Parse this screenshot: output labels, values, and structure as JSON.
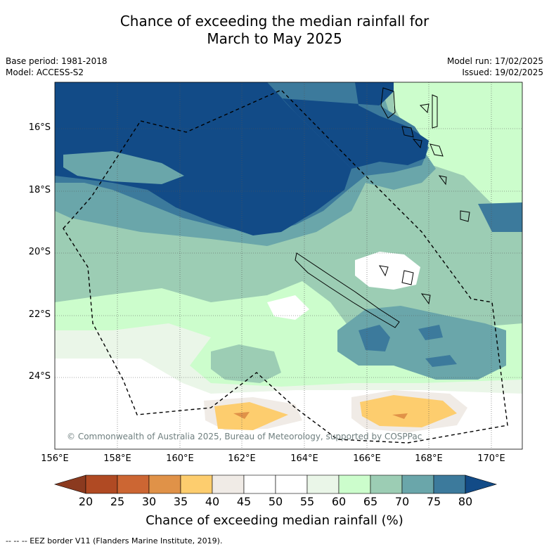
{
  "title": {
    "line1": "Chance of exceeding the median rainfall for",
    "line2": "March to May 2025"
  },
  "meta_left": {
    "base_period": "Base period: 1981-2018",
    "model": "Model: ACCESS-S2"
  },
  "meta_right": {
    "model_run": "Model run: 17/02/2025",
    "issued": "Issued: 19/02/2025"
  },
  "latitude_labels": [
    "16°S",
    "18°S",
    "20°S",
    "22°S",
    "24°S"
  ],
  "longitude_labels": [
    "156°E",
    "158°E",
    "160°E",
    "162°E",
    "164°E",
    "166°E",
    "168°E",
    "170°E"
  ],
  "copyright": "© Commonwealth of Australia 2025, Bureau of Meteorology, supported by COSPPac",
  "colorbar": {
    "ticks": [
      "20",
      "25",
      "30",
      "35",
      "40",
      "45",
      "50",
      "55",
      "60",
      "65",
      "70",
      "75",
      "80"
    ],
    "colors": [
      "#8b3a1f",
      "#b04a23",
      "#cc6633",
      "#e09248",
      "#fdcd6e",
      "#f0ebe6",
      "#ffffff",
      "#ffffff",
      "#eaf6e8",
      "#ccfdcc",
      "#9ccdb4",
      "#6aa6aa",
      "#3c7a9c",
      "#124b87"
    ],
    "label": "Chance of exceeding median rainfall (%)"
  },
  "legend_footer": "-- -- -- EEZ border V11 (Flanders Marine Institute, 2019)."
}
